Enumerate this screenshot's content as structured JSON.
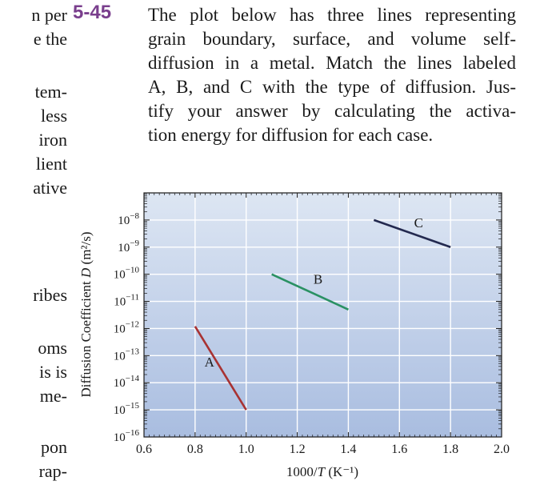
{
  "left_fragments": [
    "n per",
    "e the",
    "tem-",
    "less",
    "iron",
    "lient",
    "ative",
    "ribes",
    "oms",
    "is is",
    "me-",
    "pon",
    "rap-"
  ],
  "problem": {
    "number": "5-45",
    "lines": [
      "The plot below has three lines representing",
      "grain boundary, surface, and volume self-",
      "diffusion in a metal. Match the lines labeled",
      "A, B, and C with the type of diffusion. Jus-",
      "tify your answer by calculating the activa-",
      "tion energy for diffusion for each case."
    ]
  },
  "chart_data": {
    "type": "line",
    "xlabel": "1000/T (K⁻¹)",
    "ylabel": "Diffusion Coefficient D (m²/s)",
    "xlim": [
      0.6,
      2.0
    ],
    "ylim": [
      1e-16,
      1e-07
    ],
    "yscale": "log",
    "grid": true,
    "xticks": [
      "0.6",
      "0.8",
      "1.0",
      "1.2",
      "1.4",
      "1.6",
      "1.8",
      "2.0"
    ],
    "yticks": [
      {
        "base": "10",
        "exp": "−8"
      },
      {
        "base": "10",
        "exp": "−9"
      },
      {
        "base": "10",
        "exp": "−10"
      },
      {
        "base": "10",
        "exp": "−11"
      },
      {
        "base": "10",
        "exp": "−12"
      },
      {
        "base": "10",
        "exp": "−13"
      },
      {
        "base": "10",
        "exp": "−14"
      },
      {
        "base": "10",
        "exp": "−15"
      },
      {
        "base": "10",
        "exp": "−16"
      }
    ],
    "series": [
      {
        "name": "A",
        "color": "#a83232",
        "x": [
          0.8,
          1.0
        ],
        "y": [
          1.2e-12,
          1e-15
        ]
      },
      {
        "name": "B",
        "color": "#2a9163",
        "x": [
          1.1,
          1.4
        ],
        "y": [
          1e-10,
          5e-12
        ]
      },
      {
        "name": "C",
        "color": "#23294f",
        "x": [
          1.5,
          1.8
        ],
        "y": [
          1e-08,
          1e-09
        ]
      }
    ]
  }
}
